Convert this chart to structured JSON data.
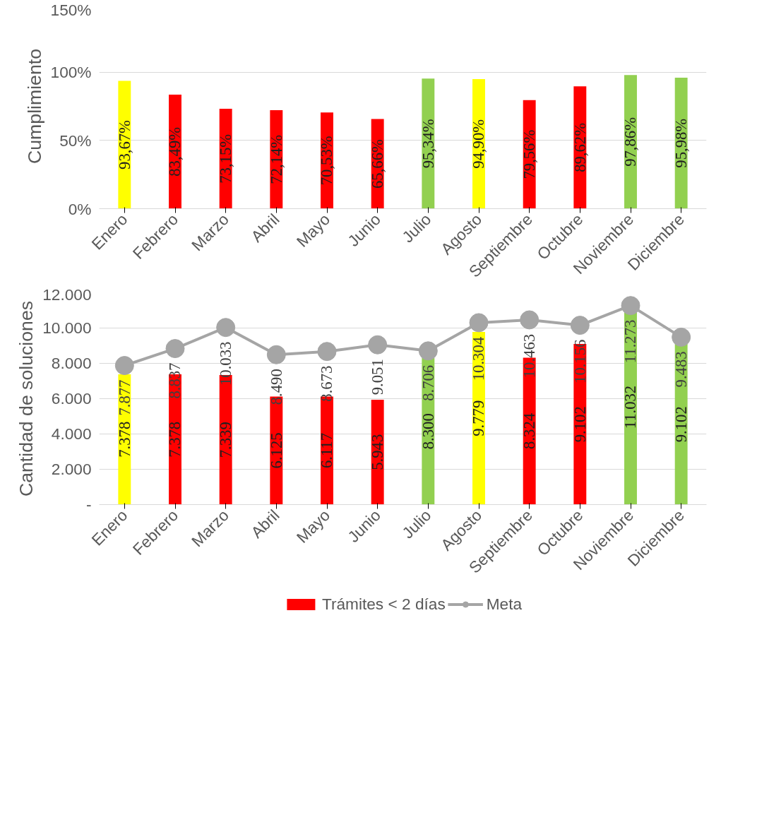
{
  "chart_data": [
    {
      "type": "bar",
      "ylabel": "Cumplimiento",
      "categories": [
        "Enero",
        "Febrero",
        "Marzo",
        "Abril",
        "Mayo",
        "Junio",
        "Julio",
        "Agosto",
        "Septiembre",
        "Octubre",
        "Noviembre",
        "Diciembre"
      ],
      "values": [
        93.67,
        83.49,
        73.15,
        72.14,
        70.53,
        65.66,
        95.34,
        94.9,
        79.56,
        89.62,
        97.86,
        95.98
      ],
      "colors": [
        "#ffff00",
        "#ff0000",
        "#ff0000",
        "#ff0000",
        "#ff0000",
        "#ff0000",
        "#92d050",
        "#ffff00",
        "#ff0000",
        "#ff0000",
        "#92d050",
        "#92d050"
      ],
      "value_labels": [
        "93,67%",
        "83,49%",
        "73,15%",
        "72,14%",
        "70,53%",
        "65,66%",
        "95,34%",
        "94,90%",
        "79,56%",
        "89,62%",
        "97,86%",
        "95,98%"
      ],
      "ylim": [
        0,
        150
      ],
      "yticks": [
        {
          "value": 0,
          "label": "0%"
        },
        {
          "value": 50,
          "label": "50%"
        },
        {
          "value": 100,
          "label": "100%"
        },
        {
          "value": 150,
          "label": "150%"
        }
      ],
      "grid": "y"
    },
    {
      "type": "bar",
      "ylabel": "Cantidad de soluciones",
      "categories": [
        "Enero",
        "Febrero",
        "Marzo",
        "Abril",
        "Mayo",
        "Junio",
        "Julio",
        "Agosto",
        "Septiembre",
        "Octubre",
        "Noviembre",
        "Diciembre"
      ],
      "series": [
        {
          "name": "Trámites < 2 días",
          "type": "bar",
          "color": "#ff0000",
          "colors": [
            "#ffff00",
            "#ff0000",
            "#ff0000",
            "#ff0000",
            "#ff0000",
            "#ff0000",
            "#92d050",
            "#ffff00",
            "#ff0000",
            "#ff0000",
            "#92d050",
            "#92d050"
          ],
          "values": [
            7378,
            7378,
            7339,
            6125,
            6117,
            5943,
            8300,
            9779,
            8324,
            9102,
            11032,
            9102
          ],
          "value_labels": [
            "7.378",
            "7.378",
            "7.339",
            "6.125",
            "6.117",
            "5.943",
            "8.300",
            "9.779",
            "8.324",
            "9.102",
            "11.032",
            "9.102"
          ]
        },
        {
          "name": "Meta",
          "type": "line",
          "color": "#a5a5a5",
          "marker": "circle",
          "values": [
            7877,
            8837,
            10033,
            8490,
            8673,
            9051,
            8706,
            10304,
            10463,
            10156,
            11273,
            9483
          ],
          "value_labels": [
            "7.877",
            "8.837",
            "10.033",
            "8.490",
            "8.673",
            "9.051",
            "8.706",
            "10.304",
            "10.463",
            "10.156",
            "11.273",
            "9.483"
          ]
        }
      ],
      "ylim": [
        0,
        12000
      ],
      "yticks": [
        {
          "value": 0,
          "label": "-"
        },
        {
          "value": 2000,
          "label": "2.000"
        },
        {
          "value": 4000,
          "label": "4.000"
        },
        {
          "value": 6000,
          "label": "6.000"
        },
        {
          "value": 8000,
          "label": "8.000"
        },
        {
          "value": 10000,
          "label": "10.000"
        },
        {
          "value": 12000,
          "label": "12.000"
        }
      ],
      "grid": "y",
      "legend": "bottom"
    }
  ]
}
